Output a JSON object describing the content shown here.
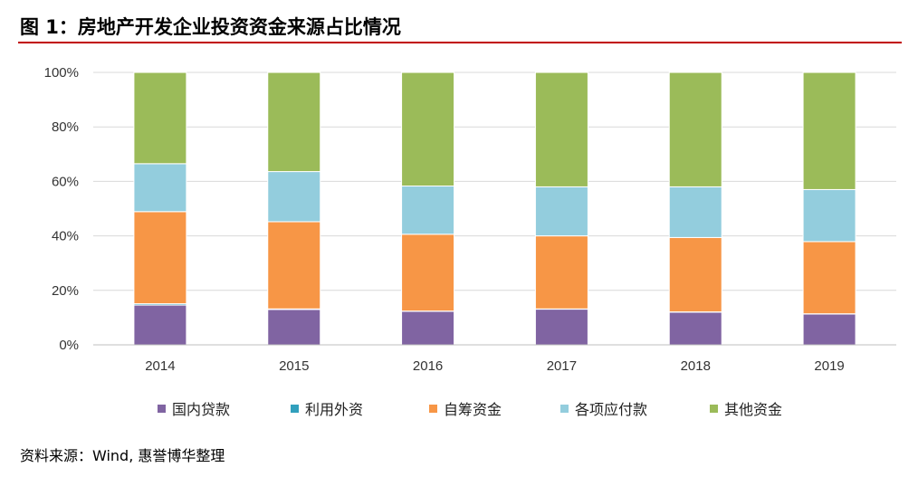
{
  "figure": {
    "title": "图 1：房地产开发企业投资资金来源占比情况",
    "source": "资料来源：Wind, 惠誉博华整理"
  },
  "chart_data": {
    "type": "bar",
    "stacked": true,
    "categories": [
      "2014",
      "2015",
      "2016",
      "2017",
      "2018",
      "2019"
    ],
    "ylim": [
      0,
      100
    ],
    "y_ticks": [
      "0%",
      "20%",
      "40%",
      "60%",
      "80%",
      "100%"
    ],
    "y_tick_values": [
      0,
      20,
      40,
      60,
      80,
      100
    ],
    "grid": true,
    "legend_position": "bottom",
    "series": [
      {
        "name": "国内贷款",
        "color": "#8064a2",
        "values": [
          14.6,
          13.0,
          12.3,
          13.1,
          12.0,
          11.3
        ]
      },
      {
        "name": "利用外资",
        "color": "#31a0bd",
        "values": [
          0.5,
          0.2,
          0.1,
          0.1,
          0.1,
          0.1
        ]
      },
      {
        "name": "自筹资金",
        "color": "#f79646",
        "values": [
          33.8,
          32.0,
          28.2,
          26.8,
          27.3,
          26.5
        ]
      },
      {
        "name": "各项应付款",
        "color": "#93cddd",
        "values": [
          17.6,
          18.4,
          17.7,
          18.0,
          18.6,
          19.1
        ]
      },
      {
        "name": "其他资金",
        "color": "#9bbb59",
        "values": [
          33.5,
          36.4,
          41.7,
          42.0,
          42.0,
          43.0
        ]
      }
    ]
  }
}
